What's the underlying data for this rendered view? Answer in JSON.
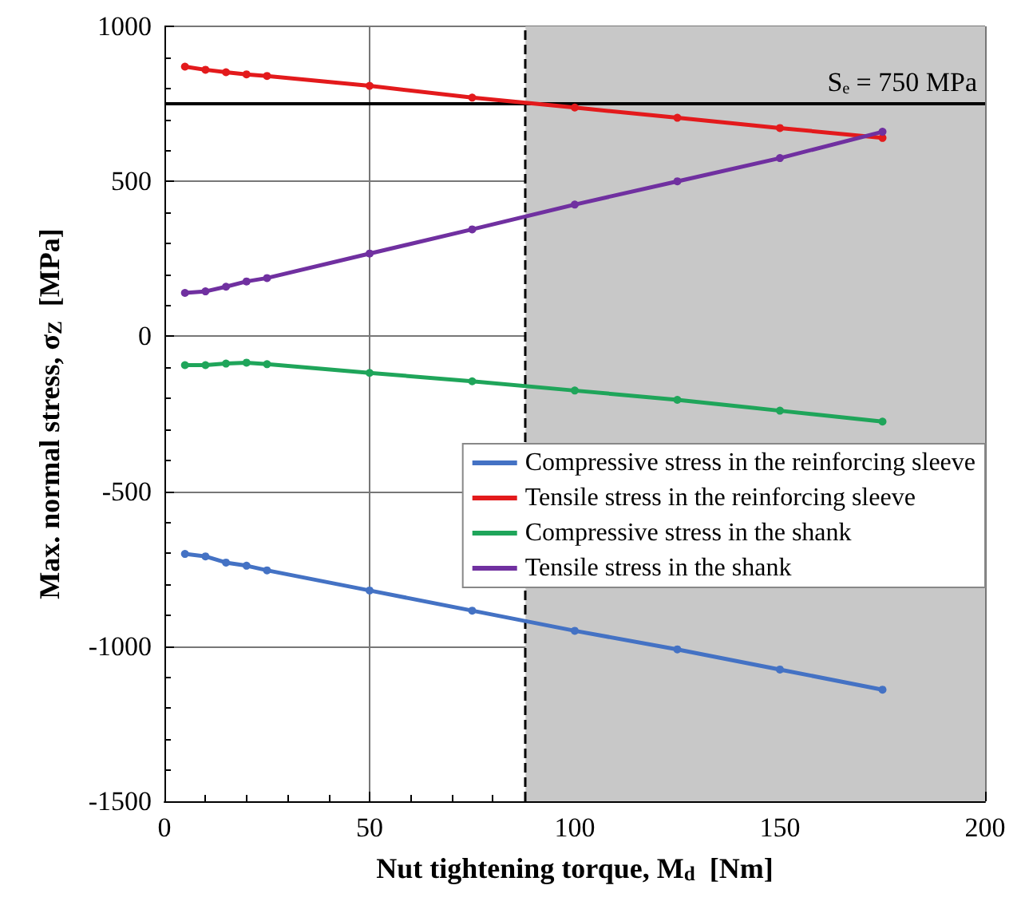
{
  "chart_data": {
    "type": "line",
    "xlabel": "Nut tightening torque, M$_{d}$  [Nm]",
    "ylabel": "Max. normal stress, σ$_{Z}$  [MPa]",
    "x": [
      5,
      10,
      15,
      20,
      25,
      50,
      75,
      100,
      125,
      150,
      175
    ],
    "series": [
      {
        "name": "Compressive stress in the reinforcing sleeve",
        "color": "#4472c4",
        "values": [
          -702,
          -710,
          -730,
          -740,
          -755,
          -820,
          -885,
          -950,
          -1010,
          -1075,
          -1140
        ]
      },
      {
        "name": "Tensile stress in the reinforcing sleeve",
        "color": "#e31a1c",
        "values": [
          870,
          860,
          852,
          845,
          840,
          808,
          770,
          738,
          705,
          672,
          640
        ]
      },
      {
        "name": "Compressive stress in the shank",
        "color": "#1fa55a",
        "values": [
          -93,
          -93,
          -88,
          -85,
          -90,
          -118,
          -145,
          -175,
          -205,
          -240,
          -275
        ]
      },
      {
        "name": "Tensile stress in the shank",
        "color": "#7030a0",
        "values": [
          140,
          145,
          160,
          177,
          188,
          267,
          345,
          425,
          500,
          575,
          660
        ]
      }
    ],
    "xlim": [
      0,
      200
    ],
    "xticks": [
      0,
      50,
      100,
      150,
      200
    ],
    "ylim": [
      -1500,
      1000
    ],
    "yticks": [
      -1500,
      -1000,
      -500,
      0,
      500,
      1000
    ],
    "ref_lines": [
      {
        "axis": "y",
        "value": 750,
        "label": "Sₑ = 750 MPa",
        "color": "#000000",
        "line_style": "solid"
      },
      {
        "axis": "x",
        "value": 88,
        "color": "#000000",
        "line_style": "dashed"
      }
    ],
    "bands": [
      {
        "axis": "x",
        "from": 88,
        "to": 200,
        "color": "#c8c8c8"
      }
    ],
    "grid": true,
    "legend": "right",
    "marker": "circle",
    "line_style": "solid"
  }
}
